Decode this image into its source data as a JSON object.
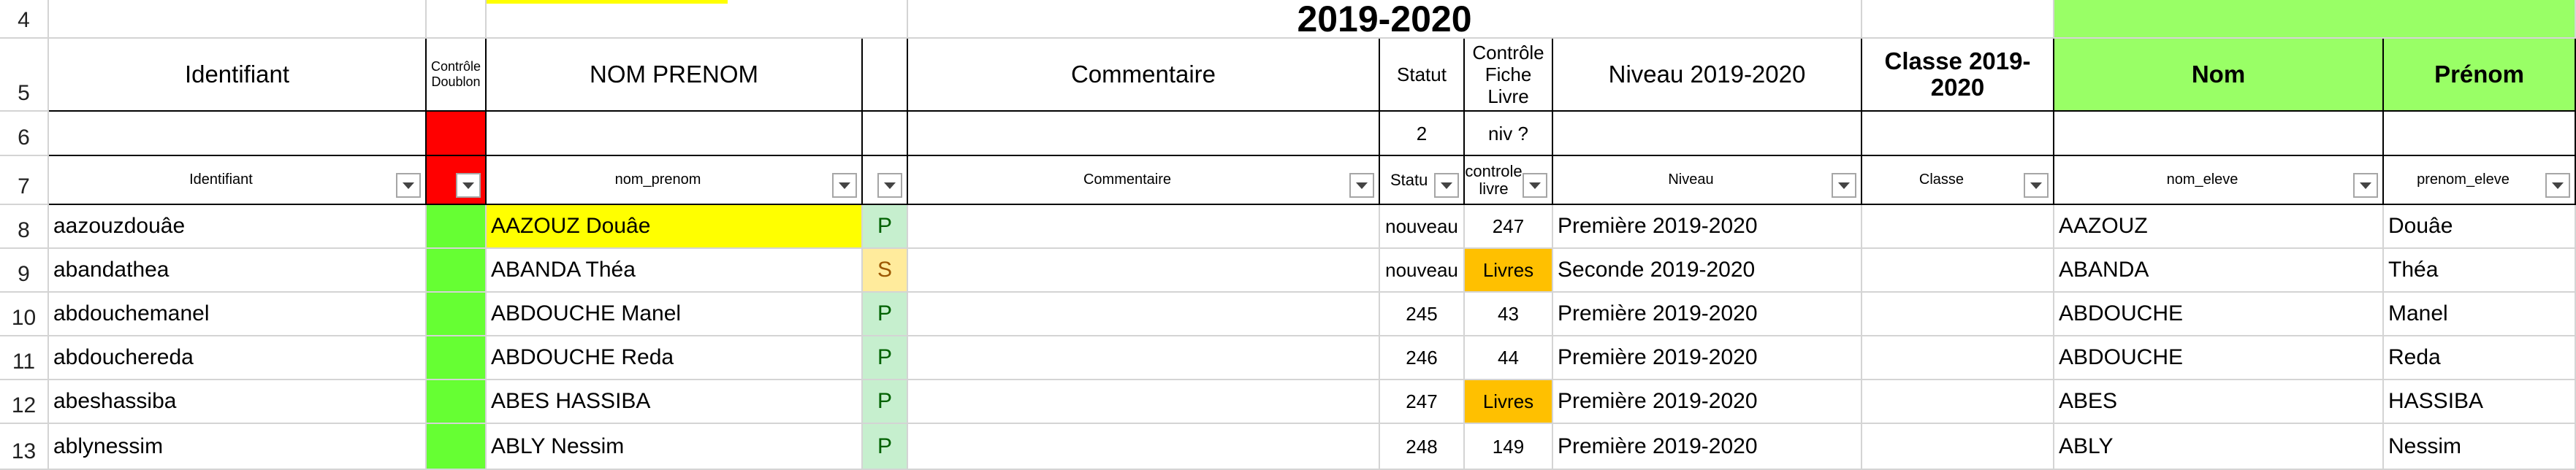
{
  "row_headers": [
    "4",
    "5",
    "6",
    "7",
    "8",
    "9",
    "10",
    "11",
    "12",
    "13"
  ],
  "title": "2019-2020",
  "header_row": {
    "identifiant": "Identifiant",
    "controle_doublon": "Contrôle Doublon",
    "nom_prenom": "NOM PRENOM",
    "commentaire": "Commentaire",
    "statut": "Statut",
    "controle_fiche_livre": "Contrôle Fiche Livre",
    "niveau": "Niveau 2019-2020",
    "classe": "Classe 2019-2020",
    "nom": "Nom",
    "prenom": "Prénom"
  },
  "row6": {
    "statut": "2",
    "controle": "niv ?"
  },
  "filter_row": {
    "identifiant": "Identifiant",
    "nom_prenom": "nom_prenom",
    "commentaire": "Commentaire",
    "statut": "Statu",
    "controle": "controle livre",
    "niveau": "Niveau",
    "classe": "Classe",
    "nom_eleve": "nom_eleve",
    "prenom_eleve": "prenom_eleve"
  },
  "rows": [
    {
      "identifiant": "aazouzdouâe",
      "nom_prenom": "AAZOUZ Douâe",
      "flag": "P",
      "statut": "nouveau",
      "controle": "247",
      "niveau": "Première 2019-2020",
      "nom": "AAZOUZ",
      "prenom": "Douâe"
    },
    {
      "identifiant": "abandathea",
      "nom_prenom": "ABANDA Théa",
      "flag": "S",
      "statut": "nouveau",
      "controle": "Livres",
      "niveau": "Seconde 2019-2020",
      "nom": "ABANDA",
      "prenom": "Théa"
    },
    {
      "identifiant": "abdouchemanel",
      "nom_prenom": "ABDOUCHE Manel",
      "flag": "P",
      "statut": "245",
      "controle": "43",
      "niveau": "Première 2019-2020",
      "nom": "ABDOUCHE",
      "prenom": "Manel"
    },
    {
      "identifiant": "abdouchereda",
      "nom_prenom": "ABDOUCHE Reda",
      "flag": "P",
      "statut": "246",
      "controle": "44",
      "niveau": "Première 2019-2020",
      "nom": "ABDOUCHE",
      "prenom": "Reda"
    },
    {
      "identifiant": "abeshassiba",
      "nom_prenom": "ABES HASSIBA",
      "flag": "P",
      "statut": "247",
      "controle": "Livres",
      "niveau": "Première 2019-2020",
      "nom": "ABES",
      "prenom": "HASSIBA"
    },
    {
      "identifiant": "ablynessim",
      "nom_prenom": "ABLY Nessim",
      "flag": "P",
      "statut": "248",
      "controle": "149",
      "niveau": "Première 2019-2020",
      "nom": "ABLY",
      "prenom": "Nessim"
    }
  ],
  "colors": {
    "doublon_ok": "#66ff33",
    "doublon_header": "#ff0000",
    "name_header_bg": "#99ff66",
    "highlight_yellow": "#ffff00",
    "livres_orange": "#ffc000",
    "flag_p_bg": "#c6efce",
    "flag_s_bg": "#ffeb9c"
  }
}
